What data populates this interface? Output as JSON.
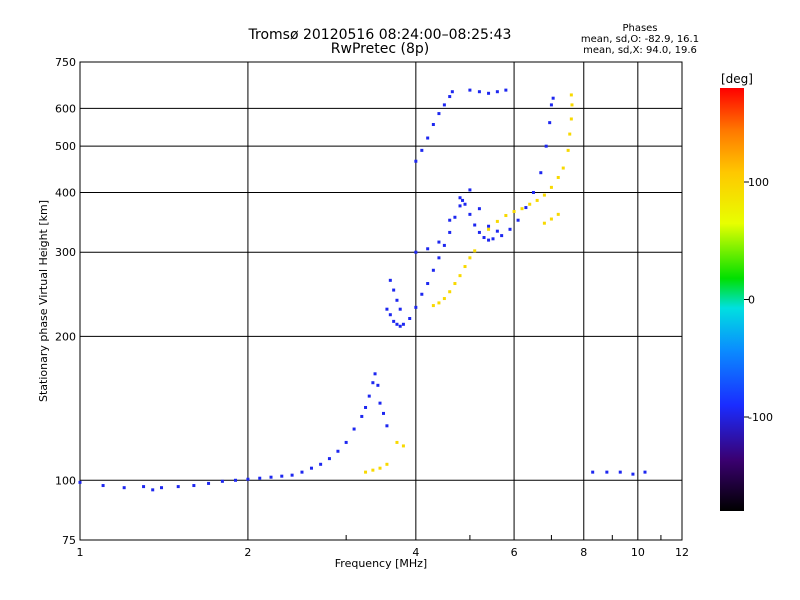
{
  "chart_data": {
    "type": "scatter",
    "title": "Tromsø 20120516 08:24:00–08:25:43",
    "subtitle": "RwPretec (8p)",
    "xlabel": "Frequency [MHz]",
    "ylabel": "Stationary phase Virtual Height [km]",
    "x_scale": "log",
    "y_scale": "log",
    "xlim": [
      1,
      12
    ],
    "ylim": [
      75,
      750
    ],
    "x_ticks": [
      "1",
      "2",
      "4",
      "6",
      "8",
      "10",
      "12"
    ],
    "y_ticks": [
      "750",
      "600",
      "500",
      "400",
      "300",
      "200",
      "100",
      "75"
    ],
    "grid": true,
    "phase_stats": {
      "heading": "Phases",
      "line1": "mean, sd,O: -82.9, 16.1",
      "line2": "mean, sd,X: 94.0, 19.6"
    },
    "colorbar": {
      "label": "[deg]",
      "ticks": [
        "100",
        "0",
        "-100"
      ],
      "range": [
        -180,
        180
      ]
    },
    "series": [
      {
        "mode": "O",
        "phase": -95,
        "points": [
          [
            1.0,
            99
          ],
          [
            1.1,
            97.5
          ],
          [
            1.2,
            96.5
          ],
          [
            1.3,
            97
          ],
          [
            1.35,
            95.5
          ],
          [
            1.4,
            96.5
          ],
          [
            1.5,
            97
          ],
          [
            1.6,
            97.5
          ],
          [
            1.7,
            98.5
          ],
          [
            1.8,
            99.5
          ],
          [
            1.9,
            100
          ],
          [
            2.0,
            100.5
          ],
          [
            2.1,
            101
          ],
          [
            2.2,
            101.5
          ],
          [
            2.3,
            102
          ],
          [
            2.4,
            102.5
          ],
          [
            2.5,
            104
          ],
          [
            2.6,
            106
          ],
          [
            2.7,
            108
          ],
          [
            2.8,
            111
          ],
          [
            2.9,
            115
          ],
          [
            3.0,
            120
          ],
          [
            3.1,
            128
          ],
          [
            3.2,
            136
          ],
          [
            3.25,
            142
          ],
          [
            3.3,
            150
          ],
          [
            3.35,
            160
          ],
          [
            3.38,
            167
          ],
          [
            3.42,
            158
          ],
          [
            3.45,
            145
          ],
          [
            3.5,
            138
          ],
          [
            3.55,
            130
          ],
          [
            3.55,
            228
          ],
          [
            3.6,
            222
          ],
          [
            3.65,
            215
          ],
          [
            3.7,
            212
          ],
          [
            3.75,
            210
          ],
          [
            3.8,
            212
          ],
          [
            3.9,
            218
          ],
          [
            4.0,
            230
          ],
          [
            4.1,
            245
          ],
          [
            4.2,
            258
          ],
          [
            4.3,
            275
          ],
          [
            4.4,
            292
          ],
          [
            4.5,
            310
          ],
          [
            4.6,
            330
          ],
          [
            4.7,
            355
          ],
          [
            4.8,
            375
          ],
          [
            4.85,
            385
          ],
          [
            4.9,
            378
          ],
          [
            5.0,
            360
          ],
          [
            5.1,
            342
          ],
          [
            5.2,
            330
          ],
          [
            5.3,
            322
          ],
          [
            5.4,
            318
          ],
          [
            5.5,
            320
          ],
          [
            5.7,
            325
          ],
          [
            5.9,
            335
          ],
          [
            6.1,
            350
          ],
          [
            6.3,
            372
          ],
          [
            6.5,
            400
          ],
          [
            6.7,
            440
          ],
          [
            6.85,
            500
          ],
          [
            6.95,
            560
          ],
          [
            7.0,
            610
          ],
          [
            7.05,
            630
          ],
          [
            3.6,
            262
          ],
          [
            3.65,
            250
          ],
          [
            3.7,
            238
          ],
          [
            3.75,
            228
          ],
          [
            4.0,
            300
          ],
          [
            4.2,
            305
          ],
          [
            4.4,
            315
          ],
          [
            4.6,
            350
          ],
          [
            4.8,
            390
          ],
          [
            5.0,
            405
          ],
          [
            5.2,
            370
          ],
          [
            5.4,
            340
          ],
          [
            5.6,
            332
          ],
          [
            4.0,
            465
          ],
          [
            4.1,
            490
          ],
          [
            4.2,
            520
          ],
          [
            4.3,
            555
          ],
          [
            4.4,
            585
          ],
          [
            4.5,
            610
          ],
          [
            4.6,
            635
          ],
          [
            4.65,
            650
          ],
          [
            5.0,
            655
          ],
          [
            5.2,
            650
          ],
          [
            5.4,
            645
          ],
          [
            5.6,
            650
          ],
          [
            5.8,
            655
          ],
          [
            8.3,
            104
          ],
          [
            8.8,
            104
          ],
          [
            9.3,
            104
          ],
          [
            9.8,
            103
          ],
          [
            10.3,
            104
          ]
        ]
      },
      {
        "mode": "X",
        "phase": 95,
        "points": [
          [
            3.25,
            104
          ],
          [
            3.35,
            105
          ],
          [
            3.45,
            106
          ],
          [
            3.55,
            108
          ],
          [
            3.7,
            120
          ],
          [
            3.8,
            118
          ],
          [
            4.3,
            232
          ],
          [
            4.4,
            235
          ],
          [
            4.5,
            240
          ],
          [
            4.6,
            248
          ],
          [
            4.7,
            258
          ],
          [
            4.8,
            268
          ],
          [
            4.9,
            280
          ],
          [
            5.0,
            292
          ],
          [
            5.1,
            302
          ],
          [
            5.4,
            335
          ],
          [
            5.6,
            348
          ],
          [
            5.8,
            358
          ],
          [
            6.0,
            365
          ],
          [
            6.2,
            370
          ],
          [
            6.4,
            378
          ],
          [
            6.6,
            385
          ],
          [
            6.8,
            395
          ],
          [
            7.0,
            410
          ],
          [
            7.2,
            430
          ],
          [
            7.35,
            450
          ],
          [
            7.5,
            490
          ],
          [
            7.55,
            530
          ],
          [
            7.6,
            570
          ],
          [
            7.62,
            610
          ],
          [
            7.6,
            640
          ],
          [
            6.8,
            345
          ],
          [
            7.0,
            352
          ],
          [
            7.2,
            360
          ]
        ]
      }
    ]
  }
}
